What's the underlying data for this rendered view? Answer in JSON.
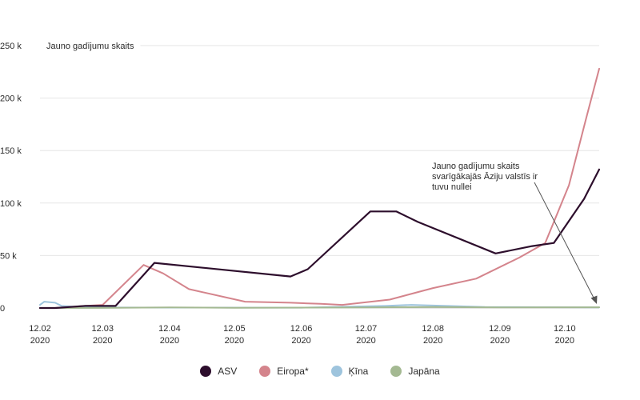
{
  "chart_data": {
    "type": "line",
    "ylabel": "Jauno gadījumu skaits",
    "ylim": [
      0,
      250000
    ],
    "yticks": [
      0,
      50000,
      100000,
      150000,
      200000,
      250000
    ],
    "ytick_labels": [
      "0",
      "50 k",
      "100 k",
      "150 k",
      "200 k",
      "250 k"
    ],
    "xlim": [
      "2020-02-12",
      "2020-10-28"
    ],
    "xticks": [
      {
        "date": "2020-02-12",
        "label": "12.02",
        "year": "2020"
      },
      {
        "date": "2020-03-12",
        "label": "12.03",
        "year": "2020"
      },
      {
        "date": "2020-04-12",
        "label": "12.04",
        "year": "2020"
      },
      {
        "date": "2020-05-12",
        "label": "12.05",
        "year": "2020"
      },
      {
        "date": "2020-06-12",
        "label": "12.06",
        "year": "2020"
      },
      {
        "date": "2020-07-12",
        "label": "12.07",
        "year": "2020"
      },
      {
        "date": "2020-08-12",
        "label": "12.08",
        "year": "2020"
      },
      {
        "date": "2020-09-12",
        "label": "12.09",
        "year": "2020"
      },
      {
        "date": "2020-10-12",
        "label": "12.10",
        "year": "2020"
      }
    ],
    "grid": true,
    "legend_position": "bottom-center",
    "series": [
      {
        "name": "ASV",
        "color": "#2d0e2c",
        "points": [
          [
            "2020-02-12",
            0
          ],
          [
            "2020-02-19",
            0
          ],
          [
            "2020-02-26",
            1000
          ],
          [
            "2020-03-04",
            2000
          ],
          [
            "2020-03-18",
            2000
          ],
          [
            "2020-04-05",
            43000
          ],
          [
            "2020-06-07",
            30000
          ],
          [
            "2020-06-15",
            37000
          ],
          [
            "2020-07-14",
            92000
          ],
          [
            "2020-07-26",
            92000
          ],
          [
            "2020-08-05",
            82000
          ],
          [
            "2020-09-10",
            52000
          ],
          [
            "2020-09-27",
            59000
          ],
          [
            "2020-10-07",
            62000
          ],
          [
            "2020-10-21",
            104000
          ],
          [
            "2020-10-28",
            132000
          ]
        ]
      },
      {
        "name": "Eiropa*",
        "color": "#d4848c",
        "points": [
          [
            "2020-02-12",
            0
          ],
          [
            "2020-02-19",
            0
          ],
          [
            "2020-02-26",
            1000
          ],
          [
            "2020-03-04",
            2000
          ],
          [
            "2020-03-12",
            3000
          ],
          [
            "2020-03-31",
            41000
          ],
          [
            "2020-04-09",
            33000
          ],
          [
            "2020-04-21",
            18000
          ],
          [
            "2020-05-17",
            6000
          ],
          [
            "2020-06-07",
            5000
          ],
          [
            "2020-06-21",
            4000
          ],
          [
            "2020-07-01",
            3000
          ],
          [
            "2020-07-23",
            8000
          ],
          [
            "2020-08-12",
            19000
          ],
          [
            "2020-09-01",
            28000
          ],
          [
            "2020-09-21",
            48000
          ],
          [
            "2020-10-03",
            62000
          ],
          [
            "2020-10-14",
            117000
          ],
          [
            "2020-10-22",
            181000
          ],
          [
            "2020-10-28",
            228000
          ]
        ]
      },
      {
        "name": "Ķīna",
        "color": "#9ec4dd",
        "points": [
          [
            "2020-02-12",
            3000
          ],
          [
            "2020-02-14",
            6000
          ],
          [
            "2020-02-19",
            5000
          ],
          [
            "2020-02-22",
            2000
          ],
          [
            "2020-03-04",
            500
          ],
          [
            "2020-04-12",
            400
          ],
          [
            "2020-06-12",
            300
          ],
          [
            "2020-07-21",
            2000
          ],
          [
            "2020-08-02",
            3000
          ],
          [
            "2020-09-05",
            1000
          ],
          [
            "2020-10-28",
            500
          ]
        ]
      },
      {
        "name": "Japāna",
        "color": "#a4b992",
        "points": [
          [
            "2020-02-12",
            0
          ],
          [
            "2020-03-12",
            100
          ],
          [
            "2020-04-12",
            500
          ],
          [
            "2020-05-12",
            200
          ],
          [
            "2020-07-12",
            500
          ],
          [
            "2020-08-12",
            1000
          ],
          [
            "2020-09-12",
            500
          ],
          [
            "2020-10-28",
            700
          ]
        ]
      }
    ],
    "annotation": {
      "lines": [
        "Jauno gadījumu skaits",
        "svarīgākajās Āziju valstīs ir",
        "tuvu nullei"
      ]
    }
  }
}
